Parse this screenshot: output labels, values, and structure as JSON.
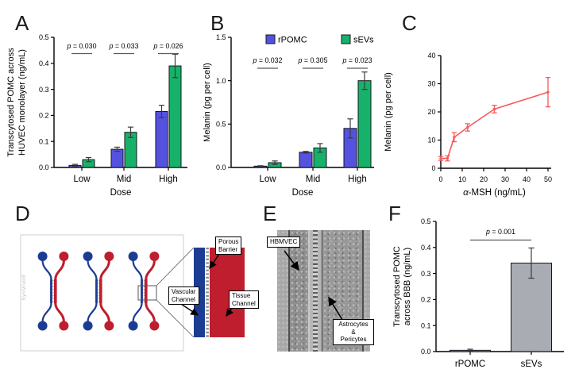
{
  "panels": {
    "A": {
      "letter": "A"
    },
    "B": {
      "letter": "B"
    },
    "C": {
      "letter": "C"
    },
    "D": {
      "letter": "D",
      "brand": "SynVivo®",
      "porous_label": [
        "Porous",
        "Barrier"
      ],
      "vascular_label": [
        "Vascular",
        "Channel"
      ],
      "tissue_label": [
        "Tissue",
        "Channel"
      ],
      "colors": {
        "vascular_blue": "#1c3c94",
        "tissue_red": "#be1e2d",
        "barrier_gray": "#9b9b9b"
      }
    },
    "E": {
      "letter": "E",
      "top_label": "HBMVEC",
      "bottom_label": [
        "Astrocytes",
        "&",
        "Pericytes"
      ]
    },
    "F": {
      "letter": "F"
    }
  },
  "chart_data": [
    {
      "panel": "A",
      "type": "bar",
      "categories": [
        "Low",
        "Mid",
        "High"
      ],
      "series": [
        {
          "name": "rPOMC",
          "color": "#5552e0",
          "values": [
            0.008,
            0.07,
            0.215
          ],
          "errors": [
            0.004,
            0.008,
            0.024
          ]
        },
        {
          "name": "sEVs",
          "color": "#17b26a",
          "values": [
            0.03,
            0.135,
            0.39
          ],
          "errors": [
            0.008,
            0.02,
            0.045
          ]
        }
      ],
      "pvalues": [
        "p = 0.030",
        "p = 0.033",
        "p = 0.026"
      ],
      "ylabel": "Transcytosed POMC across HUVEC monolayer (ng/mL)",
      "ylabel_lines": [
        "Transcytosed POMC across",
        "HUVEC monolayer (ng/mL)"
      ],
      "xlabel": "Dose",
      "ylim": [
        0,
        0.5
      ],
      "yticks": [
        0,
        0.1,
        0.2,
        0.3,
        0.4,
        0.5
      ],
      "ytick_labels": [
        "0.0",
        "0.1",
        "0.2",
        "0.3",
        "0.4",
        "0.5"
      ]
    },
    {
      "panel": "B",
      "type": "bar",
      "categories": [
        "Low",
        "Mid",
        "High"
      ],
      "series": [
        {
          "name": "rPOMC",
          "color": "#5552e0",
          "values": [
            0.015,
            0.175,
            0.45
          ],
          "errors": [
            0.005,
            0.01,
            0.11
          ]
        },
        {
          "name": "sEVs",
          "color": "#17b26a",
          "values": [
            0.055,
            0.225,
            1.0
          ],
          "errors": [
            0.02,
            0.05,
            0.1
          ]
        }
      ],
      "pvalues": [
        "p = 0.032",
        "p = 0.305",
        "p = 0.023"
      ],
      "legend": [
        "rPOMC",
        "sEVs"
      ],
      "ylabel": "Melanin (pg per cell)",
      "ylabel_lines": [
        "Melanin (pg per cell)"
      ],
      "xlabel": "Dose",
      "ylim": [
        0,
        1.5
      ],
      "yticks": [
        0,
        0.5,
        1.0,
        1.5
      ],
      "ytick_labels": [
        "0.0",
        "0.5",
        "1.0",
        "1.5"
      ]
    },
    {
      "panel": "C",
      "type": "line",
      "color": "#f8595b",
      "x": [
        0,
        3.125,
        6.25,
        12.5,
        25,
        50
      ],
      "y": [
        3.5,
        3.5,
        11,
        14.5,
        21,
        27
      ],
      "errors": [
        0.7,
        0.9,
        1.6,
        1.3,
        1.35,
        5.2
      ],
      "xlabel": "α-MSH (ng/mL)",
      "ylabel": "Melanin (pg per cell)",
      "ylabel_lines": [
        "Melanin (pg per cell)"
      ],
      "xlim": [
        0,
        50
      ],
      "xticks": [
        0,
        10,
        20,
        30,
        40,
        50
      ],
      "xtick_labels": [
        "0",
        "10",
        "20",
        "30",
        "40",
        "50"
      ],
      "ylim": [
        0,
        40
      ],
      "yticks": [
        0,
        10,
        20,
        30,
        40
      ],
      "ytick_labels": [
        "0",
        "10",
        "20",
        "30",
        "40"
      ]
    },
    {
      "panel": "F",
      "type": "bar",
      "categories": [
        "rPOMC",
        "sEVs"
      ],
      "series": [
        {
          "name": "Transcytosed POMC",
          "color": "#a9acb2",
          "values": [
            0.005,
            0.34
          ],
          "errors": [
            0.004,
            0.058
          ]
        }
      ],
      "pvalues": [
        "p = 0.001"
      ],
      "pval_span": true,
      "ylabel": "Transcytosed POMC across BBB (ng/mL)",
      "ylabel_lines": [
        "Transcytosed POMC",
        "across BBB (ng/mL)"
      ],
      "xlabel": "",
      "ylim": [
        0,
        0.5
      ],
      "yticks": [
        0,
        0.1,
        0.2,
        0.3,
        0.4,
        0.5
      ],
      "ytick_labels": [
        "0.0",
        "0.1",
        "0.2",
        "0.3",
        "0.4",
        "0.5"
      ]
    }
  ]
}
